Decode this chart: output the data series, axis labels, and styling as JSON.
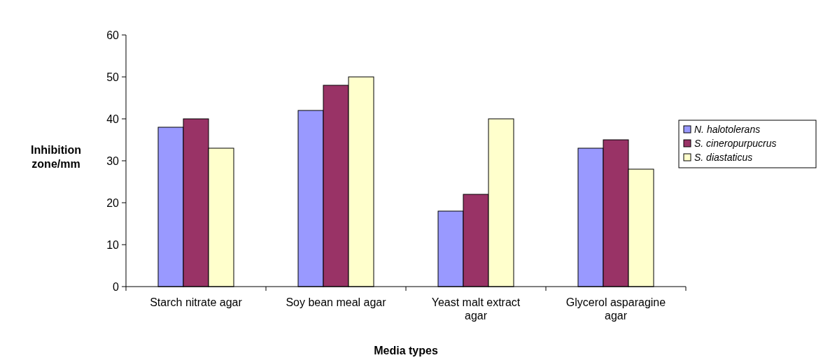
{
  "chart_data": {
    "type": "bar",
    "xlabel": "Media types",
    "ylabel": "Inhibition zone/mm",
    "categories": [
      "Starch nitrate agar",
      "Soy bean meal agar",
      "Yeast malt extract agar",
      "Glycerol asparagine agar"
    ],
    "series": [
      {
        "name": "N. halotolerans",
        "color": "#9999ff",
        "values": [
          38,
          42,
          18,
          33
        ]
      },
      {
        "name": "S. cineropurpucrus",
        "color": "#993366",
        "values": [
          40,
          48,
          22,
          35
        ]
      },
      {
        "name": "S. diastaticus",
        "color": "#ffffcc",
        "values": [
          33,
          50,
          40,
          28
        ]
      }
    ],
    "ylim": [
      0,
      60
    ],
    "yticks": [
      0,
      10,
      20,
      30,
      40,
      50,
      60
    ],
    "grid": false,
    "legend": "right"
  }
}
